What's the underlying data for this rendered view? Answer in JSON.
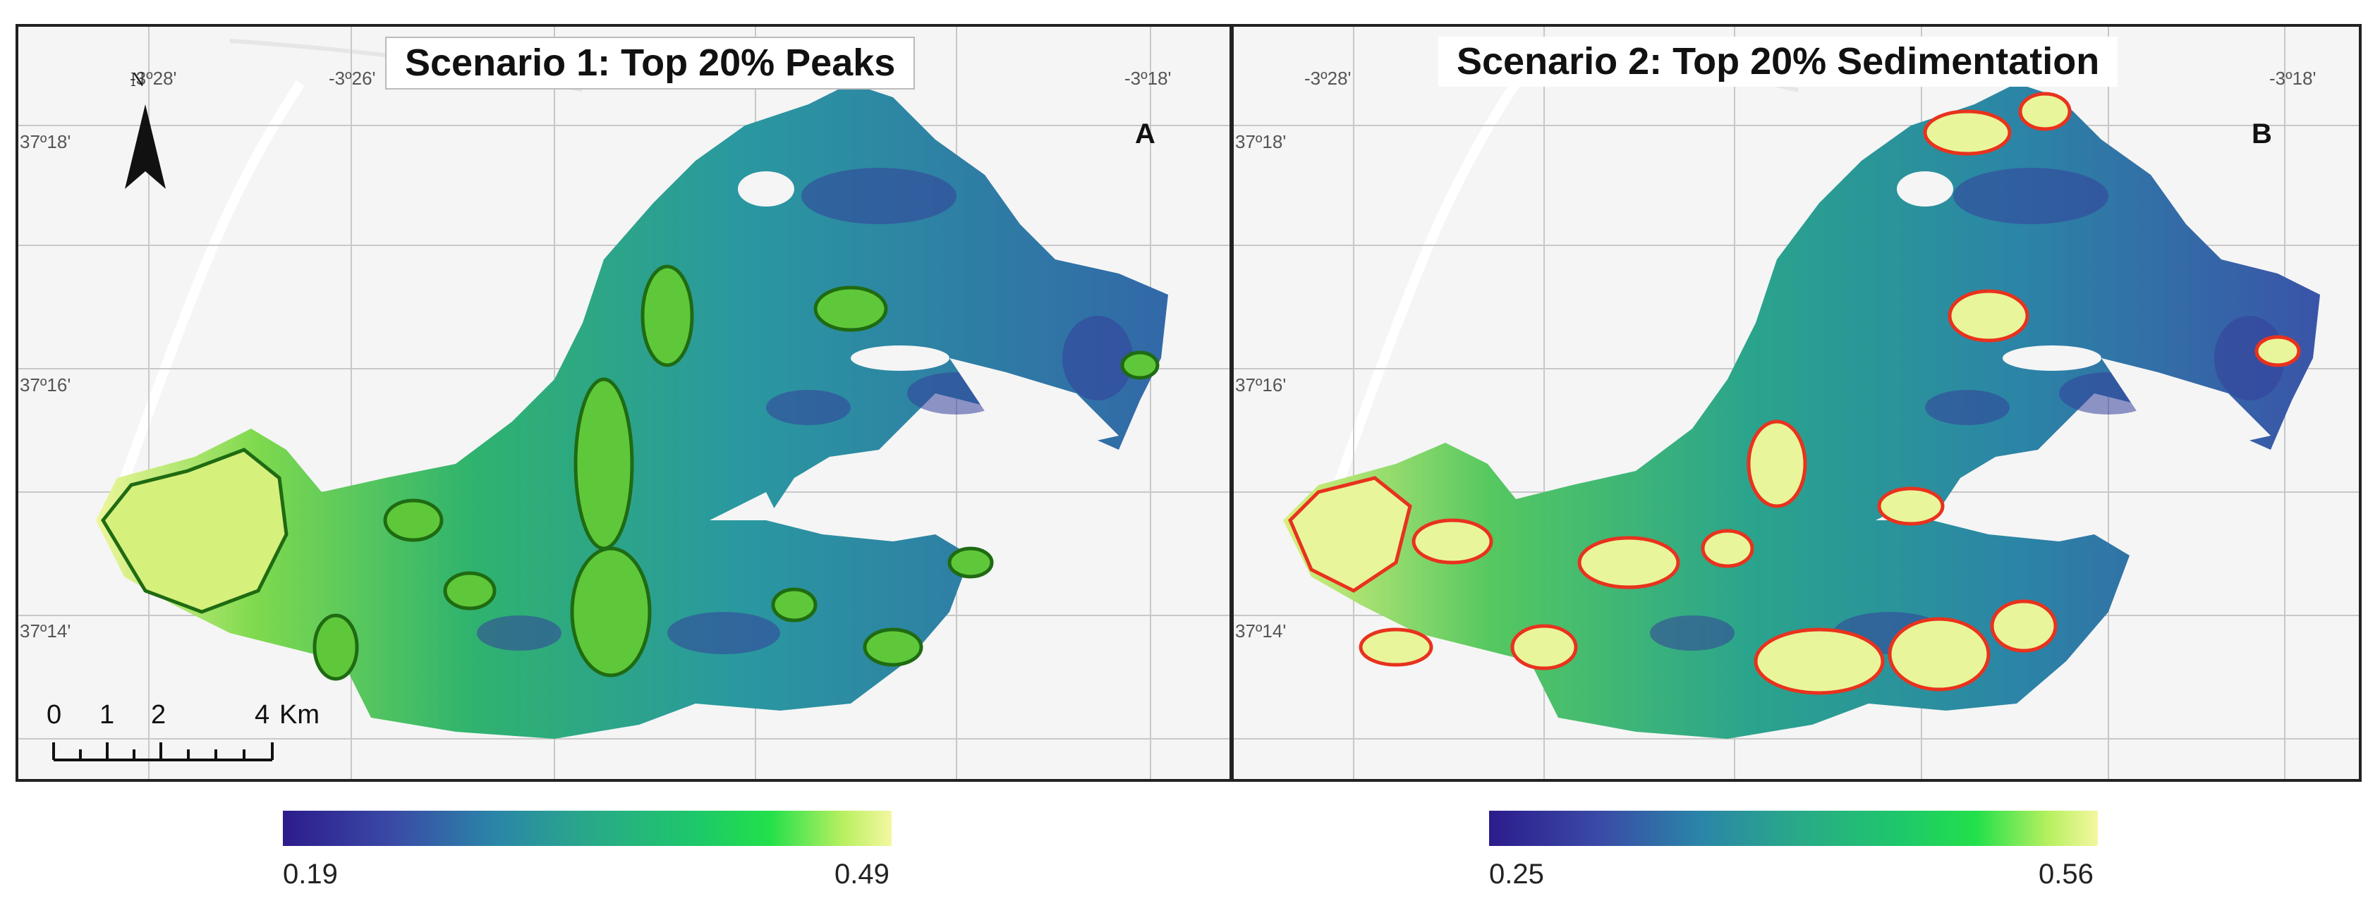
{
  "panels": [
    {
      "title": "Scenario 1: Top 20% Peaks",
      "letter": "A",
      "lon_labels": [
        "-3º28'",
        "-3º26'",
        "-3º18'"
      ],
      "lat_labels": [
        "37º18'",
        "37º16'",
        "37º14'"
      ],
      "outline_color": "#1f6b12",
      "colorbar": {
        "min": "0.19",
        "max": "0.49"
      }
    },
    {
      "title": "Scenario 2: Top 20% Sedimentation",
      "letter": "B",
      "lon_labels": [
        "-3º28'",
        "-3º18'"
      ],
      "lat_labels": [
        "37º18'",
        "37º16'",
        "37º14'"
      ],
      "outline_color": "#e8321e",
      "colorbar": {
        "min": "0.25",
        "max": "0.56"
      }
    }
  ],
  "north_arrow": {
    "label": "N"
  },
  "scalebar": {
    "ticks": [
      "0",
      "1",
      "2",
      "4"
    ],
    "unit": "Km"
  },
  "colors": {
    "ramp": [
      "#2c1c8c",
      "#3a4aa6",
      "#2a86a8",
      "#29a889",
      "#1ec86a",
      "#22e04a",
      "#b8f060",
      "#f4f7a0"
    ],
    "background": "#f5f5f5",
    "graticule": "#c8c8c8"
  }
}
